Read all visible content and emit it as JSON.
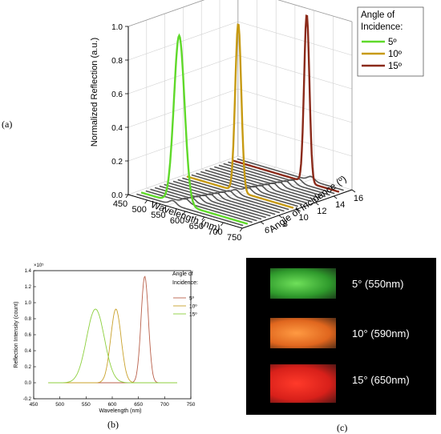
{
  "labels": {
    "a": "(a)",
    "b": "(b)",
    "c": "(c)"
  },
  "chart_data": [
    {
      "type": "line",
      "projection": "3d",
      "zlabel": "Normalized Reflection (a.u.)",
      "xlabel": "Wavelength (nm)",
      "ylabel": "Angle of Incidence (º)",
      "xticks": [
        "450",
        "500",
        "550",
        "600",
        "650",
        "700",
        "750"
      ],
      "yticks": [
        "6",
        "8",
        "10",
        "12",
        "14",
        "16"
      ],
      "zticks": [
        "0.0",
        "0.2",
        "0.4",
        "0.6",
        "0.8",
        "1.0"
      ],
      "xlim": [
        450,
        750
      ],
      "ylim": [
        4,
        16
      ],
      "zlim": [
        0,
        1.0
      ],
      "legend_title": "Angle of Incidence:",
      "legend_position": "top-right",
      "series": [
        {
          "name": "5º",
          "angle": 5,
          "peak": 560,
          "width": 14,
          "color": "#5fd92a"
        },
        {
          "name": "10º",
          "angle": 10,
          "peak": 595,
          "width": 8,
          "color": "#c79a12"
        },
        {
          "name": "15º",
          "angle": 15,
          "peak": 655,
          "width": 7,
          "color": "#8b2a1a"
        }
      ],
      "gray_angles": [
        4.5,
        5.5,
        6,
        6.5,
        7,
        7.5,
        8,
        8.5,
        9,
        9.5,
        10.5,
        11,
        11.5,
        12,
        12.5,
        13,
        13.5,
        14,
        14.5,
        15.5
      ],
      "grid": true
    },
    {
      "type": "line",
      "xlabel": "Wavelength (nm)",
      "ylabel": "Reflection Intensity (count)",
      "multiplier": "×10⁵",
      "xlim": [
        450,
        750
      ],
      "ylim": [
        -0.2,
        1.4
      ],
      "xticks": [
        "450",
        "500",
        "550",
        "600",
        "650",
        "700",
        "750"
      ],
      "yticks": [
        "-0.2",
        "0.0",
        "0.2",
        "0.4",
        "0.6",
        "0.8",
        "1.0",
        "1.2",
        "1.4"
      ],
      "legend_title": "Angle of Incidence:",
      "legend_position": "top-right",
      "series": [
        {
          "name": "5º",
          "peak": 662,
          "width": 7,
          "amplitude": 1.33,
          "color": "#b9604a"
        },
        {
          "name": "10º",
          "peak": 607,
          "width": 10,
          "amplitude": 0.92,
          "color": "#c9a12a"
        },
        {
          "name": "15º",
          "peak": 568,
          "width": 17,
          "amplitude": 0.92,
          "color": "#8ccf3c"
        }
      ]
    }
  ],
  "photo": {
    "strips": [
      {
        "caption": "5° (550nm)",
        "color": "#2f9a2c",
        "glow": "#6fe05a"
      },
      {
        "caption": "10° (590nm)",
        "color": "#e0661e",
        "glow": "#ff9a42"
      },
      {
        "caption": "15° (650nm)",
        "color": "#d8201a",
        "glow": "#ff3a2a"
      }
    ]
  }
}
